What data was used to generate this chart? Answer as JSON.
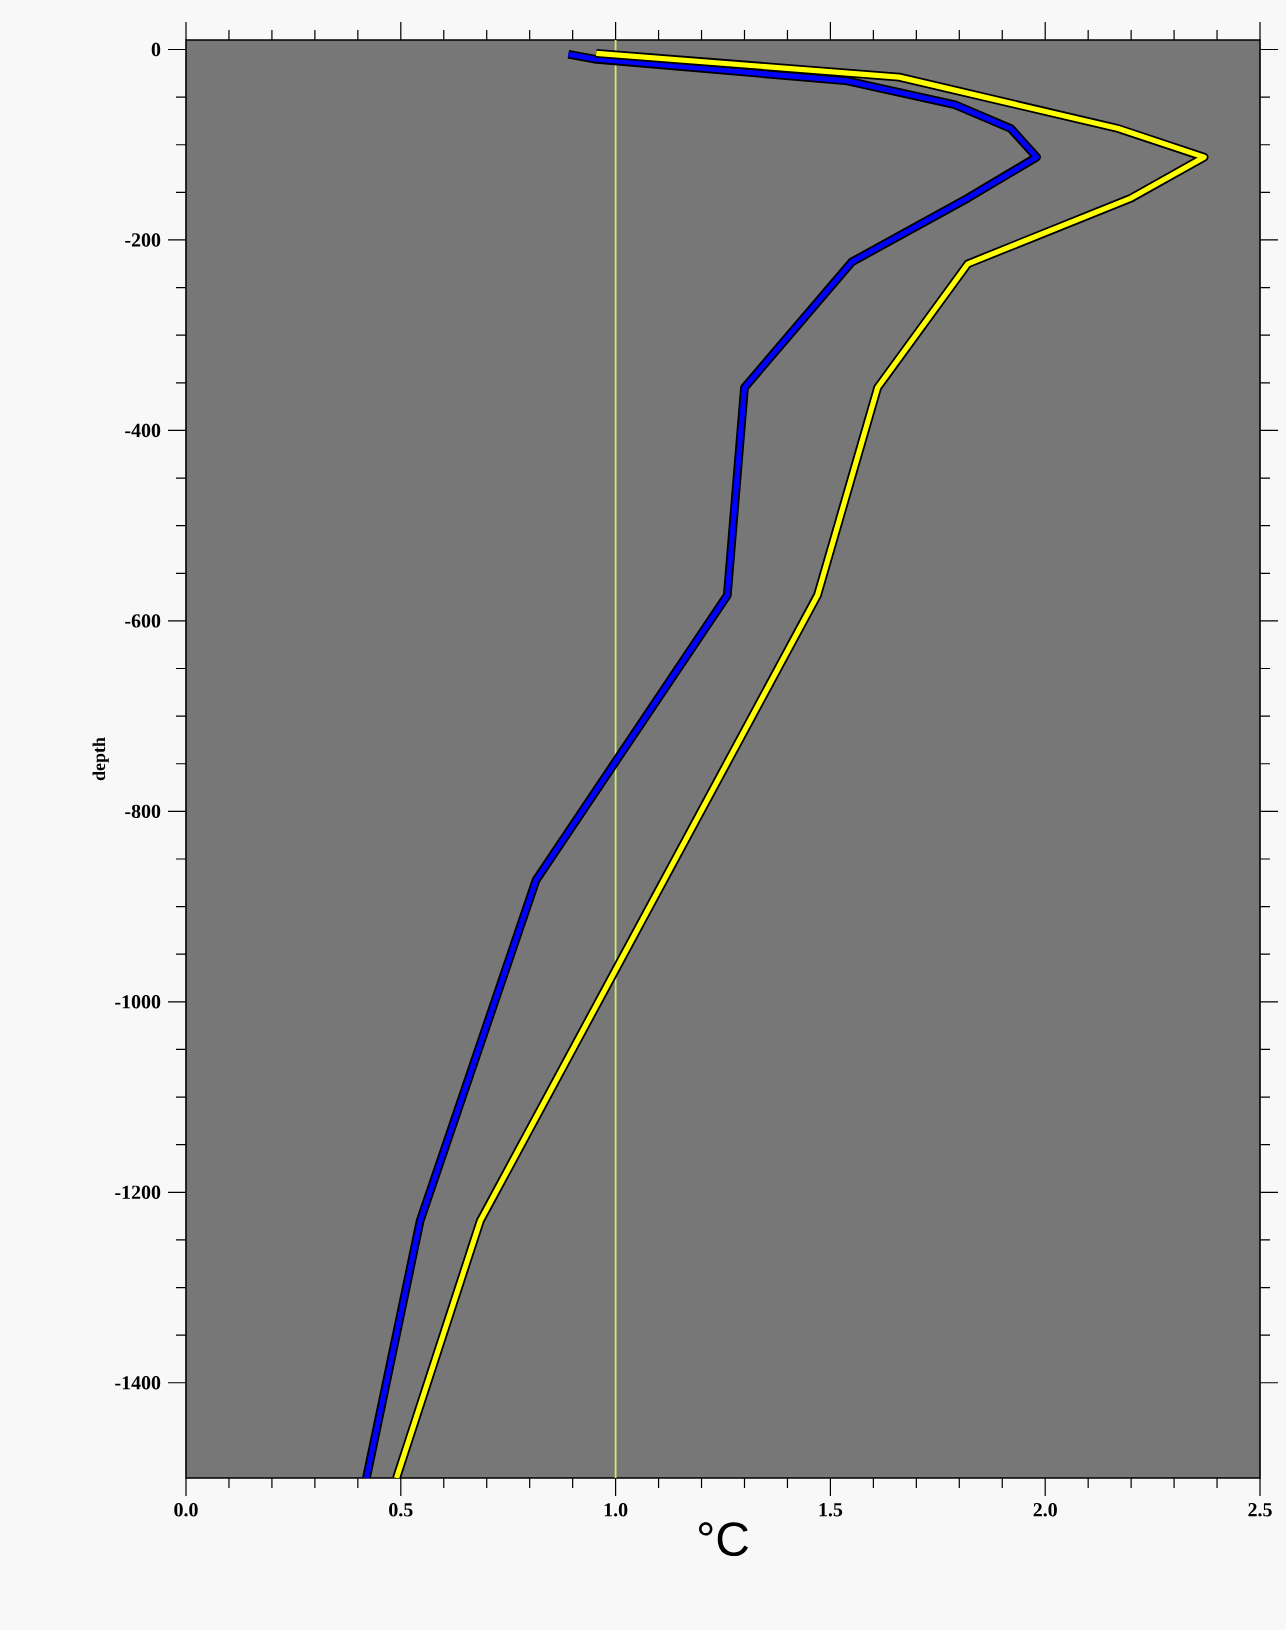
{
  "chart_data": {
    "type": "line",
    "xlabel": "°C",
    "ylabel": "depth",
    "series": [
      {
        "color": "#0000ff",
        "x": [
          0.89,
          0.95,
          1.54,
          1.79,
          1.92,
          1.98,
          1.82,
          1.55,
          1.3,
          1.26,
          0.815,
          0.545,
          0.42
        ],
        "values": [
          -5,
          -10,
          -33,
          -58,
          -83,
          -113,
          -156,
          -223,
          -355,
          -573,
          -872,
          -1230,
          -1500
        ]
      },
      {
        "color": "#ffff00",
        "x": [
          0.955,
          1.66,
          2.17,
          2.37,
          2.2,
          1.82,
          1.61,
          1.47,
          0.685,
          0.49
        ],
        "values": [
          -4,
          -29,
          -83,
          -113,
          -156,
          -225,
          -355,
          -573,
          -1230,
          -1500
        ]
      }
    ],
    "ref_lines": [
      {
        "axis": "x",
        "value": 1.0,
        "color": "#ccee66"
      }
    ],
    "xlim": [
      0,
      2.5
    ],
    "ylim": [
      -1500,
      10
    ],
    "xticks": [
      {
        "value": 0,
        "label": "0.0"
      },
      {
        "value": 0.5,
        "label": "0.5"
      },
      {
        "value": 1,
        "label": "1.0"
      },
      {
        "value": 1.5,
        "label": "1.5"
      },
      {
        "value": 2,
        "label": "2.0"
      },
      {
        "value": 2.5,
        "label": "2.5"
      }
    ],
    "yticks": [
      -1400,
      -1200,
      -1000,
      -800,
      -600,
      -400,
      -200,
      0
    ],
    "grid": false,
    "marker": "none",
    "line_style": "solid"
  }
}
